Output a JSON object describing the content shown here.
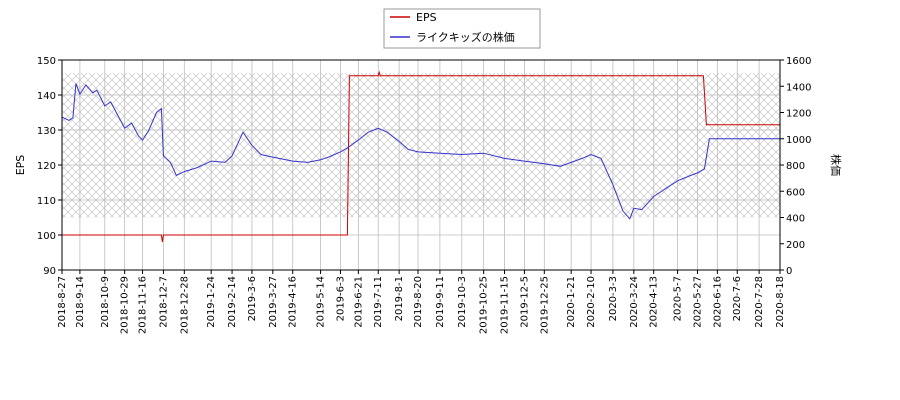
{
  "chart_data": {
    "type": "line",
    "legend": {
      "placement": "top-center",
      "entries": [
        {
          "label": "EPS",
          "color": "#cc0000"
        },
        {
          "label": "ライクキッズの株価",
          "color": "#3333cc"
        }
      ]
    },
    "xlabel": "",
    "ylabel_left": "EPS",
    "ylabel_right": "株価",
    "ylim_left": [
      90,
      150
    ],
    "ylim_right": [
      0,
      1600
    ],
    "yticks_left": [
      90,
      100,
      110,
      120,
      130,
      140,
      150
    ],
    "yticks_right": [
      0,
      200,
      400,
      600,
      800,
      1000,
      1200,
      1400,
      1600
    ],
    "x_range": [
      "2018-08-27",
      "2020-08-18"
    ],
    "x_tick_labels": [
      "2018-8-27",
      "2018-9-14",
      "2018-10-9",
      "2018-10-29",
      "2018-11-16",
      "2018-12-7",
      "2018-12-28",
      "2019-1-24",
      "2019-2-14",
      "2019-3-6",
      "2019-3-27",
      "2019-4-16",
      "2019-5-14",
      "2019-6-3",
      "2019-6-21",
      "2019-7-11",
      "2019-8-1",
      "2019-8-20",
      "2019-9-11",
      "2019-10-3",
      "2019-10-25",
      "2019-11-15",
      "2019-12-5",
      "2019-12-25",
      "2020-1-21",
      "2020-2-10",
      "2020-3-3",
      "2020-3-24",
      "2020-4-13",
      "2020-5-7",
      "2020-5-27",
      "2020-6-16",
      "2020-7-6",
      "2020-7-28",
      "2020-8-18"
    ],
    "grid": true,
    "hatch_band_right": [
      400,
      1500
    ],
    "series": [
      {
        "name": "EPS",
        "axis": "left",
        "color": "#cc0000",
        "points": [
          [
            "2018-08-27",
            100.0
          ],
          [
            "2018-11-16",
            100.0
          ],
          [
            "2018-12-05",
            100.0
          ],
          [
            "2018-12-06",
            98.0
          ],
          [
            "2018-12-07",
            100.0
          ],
          [
            "2019-06-10",
            100.0
          ],
          [
            "2019-06-12",
            145.5
          ],
          [
            "2019-07-11",
            145.5
          ],
          [
            "2019-07-12",
            146.5
          ],
          [
            "2019-07-13",
            145.5
          ],
          [
            "2020-06-02",
            145.5
          ],
          [
            "2020-06-05",
            131.5
          ],
          [
            "2020-08-18",
            131.5
          ]
        ]
      },
      {
        "name": "ライクキッズの株価",
        "axis": "right",
        "color": "#3333cc",
        "points": [
          [
            "2018-08-27",
            1165
          ],
          [
            "2018-09-03",
            1140
          ],
          [
            "2018-09-07",
            1160
          ],
          [
            "2018-09-10",
            1420
          ],
          [
            "2018-09-14",
            1340
          ],
          [
            "2018-09-20",
            1410
          ],
          [
            "2018-09-27",
            1350
          ],
          [
            "2018-10-01",
            1370
          ],
          [
            "2018-10-09",
            1250
          ],
          [
            "2018-10-15",
            1280
          ],
          [
            "2018-10-22",
            1180
          ],
          [
            "2018-10-29",
            1080
          ],
          [
            "2018-11-05",
            1120
          ],
          [
            "2018-11-12",
            1020
          ],
          [
            "2018-11-16",
            990
          ],
          [
            "2018-11-22",
            1060
          ],
          [
            "2018-11-30",
            1200
          ],
          [
            "2018-12-05",
            1230
          ],
          [
            "2018-12-07",
            870
          ],
          [
            "2018-12-14",
            820
          ],
          [
            "2018-12-20",
            720
          ],
          [
            "2018-12-28",
            750
          ],
          [
            "2019-01-10",
            780
          ],
          [
            "2019-01-24",
            830
          ],
          [
            "2019-02-07",
            820
          ],
          [
            "2019-02-14",
            870
          ],
          [
            "2019-02-25",
            1050
          ],
          [
            "2019-03-06",
            950
          ],
          [
            "2019-03-15",
            880
          ],
          [
            "2019-03-27",
            860
          ],
          [
            "2019-04-16",
            830
          ],
          [
            "2019-05-01",
            820
          ],
          [
            "2019-05-14",
            840
          ],
          [
            "2019-05-22",
            860
          ],
          [
            "2019-06-03",
            900
          ],
          [
            "2019-06-10",
            930
          ],
          [
            "2019-06-21",
            990
          ],
          [
            "2019-07-01",
            1050
          ],
          [
            "2019-07-11",
            1080
          ],
          [
            "2019-07-20",
            1050
          ],
          [
            "2019-08-01",
            980
          ],
          [
            "2019-08-10",
            920
          ],
          [
            "2019-08-20",
            900
          ],
          [
            "2019-09-11",
            890
          ],
          [
            "2019-10-03",
            880
          ],
          [
            "2019-10-25",
            890
          ],
          [
            "2019-11-15",
            850
          ],
          [
            "2019-12-05",
            830
          ],
          [
            "2019-12-25",
            810
          ],
          [
            "2020-01-10",
            790
          ],
          [
            "2020-01-21",
            820
          ],
          [
            "2020-02-01",
            850
          ],
          [
            "2020-02-10",
            880
          ],
          [
            "2020-02-20",
            850
          ],
          [
            "2020-03-03",
            650
          ],
          [
            "2020-03-13",
            450
          ],
          [
            "2020-03-20",
            390
          ],
          [
            "2020-03-24",
            470
          ],
          [
            "2020-04-01",
            460
          ],
          [
            "2020-04-13",
            560
          ],
          [
            "2020-04-25",
            620
          ],
          [
            "2020-05-07",
            680
          ],
          [
            "2020-05-20",
            720
          ],
          [
            "2020-05-27",
            740
          ],
          [
            "2020-06-03",
            770
          ],
          [
            "2020-06-08",
            1000
          ],
          [
            "2020-06-16",
            1000
          ],
          [
            "2020-07-06",
            1000
          ],
          [
            "2020-07-28",
            1000
          ],
          [
            "2020-08-18",
            1000
          ]
        ]
      }
    ]
  }
}
